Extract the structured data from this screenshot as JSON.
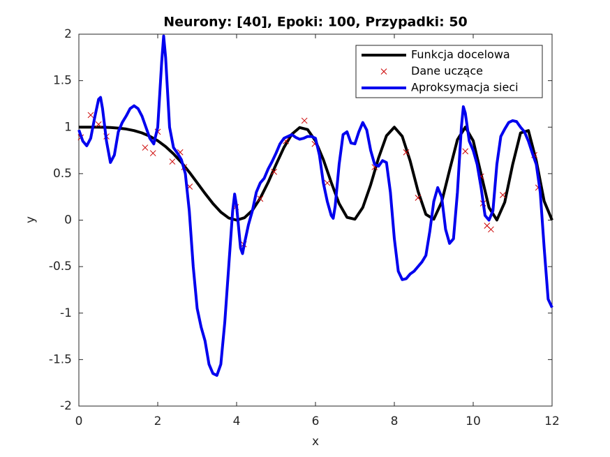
{
  "chart_data": {
    "type": "line",
    "title": "Neurony: [40], Epoki: 100, Przypadki: 50",
    "x_label": "x",
    "y_label": "y",
    "xlim": [
      0,
      12
    ],
    "ylim": [
      -2,
      2
    ],
    "xticks": [
      0,
      2,
      4,
      6,
      8,
      10,
      12
    ],
    "yticks": [
      -2,
      -1.5,
      -1,
      -0.5,
      0,
      0.5,
      1,
      1.5,
      2
    ],
    "legend": "northeast",
    "series": [
      {
        "name": "Funkcja docelowa",
        "color": "#000000",
        "x": [
          0,
          0.2,
          0.4,
          0.6,
          0.8,
          1,
          1.2,
          1.4,
          1.6,
          1.8,
          2,
          2.2,
          2.4,
          2.6,
          2.8,
          3,
          3.2,
          3.4,
          3.6,
          3.8,
          4,
          4.2,
          4.4,
          4.6,
          4.8,
          5,
          5.2,
          5.4,
          5.6,
          5.8,
          6,
          6.2,
          6.4,
          6.6,
          6.8,
          7,
          7.2,
          7.4,
          7.6,
          7.8,
          8,
          8.2,
          8.4,
          8.6,
          8.8,
          9,
          9.2,
          9.4,
          9.6,
          9.8,
          10,
          10.2,
          10.4,
          10.6,
          10.8,
          11,
          11.2,
          11.4,
          11.6,
          11.8,
          12
        ],
        "values": [
          1,
          1,
          1,
          0.999,
          0.996,
          0.99,
          0.98,
          0.963,
          0.938,
          0.902,
          0.854,
          0.791,
          0.713,
          0.621,
          0.516,
          0.402,
          0.287,
          0.178,
          0.086,
          0.023,
          0,
          0.026,
          0.105,
          0.236,
          0.406,
          0.598,
          0.781,
          0.924,
          0.996,
          0.974,
          0.853,
          0.651,
          0.406,
          0.178,
          0.03,
          0.01,
          0.136,
          0.38,
          0.669,
          0.907,
          1,
          0.902,
          0.639,
          0.312,
          0.062,
          0.01,
          0.194,
          0.536,
          0.865,
          1,
          0.854,
          0.496,
          0.136,
          0.001,
          0.193,
          0.597,
          0.938,
          0.963,
          0.639,
          0.203,
          0
        ]
      },
      {
        "name": "Dane uczące",
        "color": "#cc0000",
        "marker": "x",
        "x": [
          0.05,
          0.3,
          0.5,
          0.7,
          1.68,
          1.88,
          2.0,
          2.37,
          2.57,
          2.67,
          2.81,
          3.98,
          4.18,
          4.6,
          4.95,
          5.25,
          5.72,
          5.98,
          6.3,
          7.5,
          8.3,
          8.6,
          9.8,
          10.2,
          10.25,
          10.35,
          10.45,
          10.75,
          11.55,
          11.65
        ],
        "values": [
          0.89,
          1.13,
          1.03,
          0.9,
          0.78,
          0.72,
          0.95,
          0.63,
          0.73,
          0.57,
          0.36,
          0.14,
          -0.26,
          0.23,
          0.52,
          0.85,
          1.07,
          0.82,
          0.4,
          0.57,
          0.73,
          0.24,
          0.74,
          0.47,
          0.18,
          -0.06,
          -0.1,
          0.27,
          0.7,
          0.35
        ]
      },
      {
        "name": "Aproksymacja sieci",
        "color": "#0000ee",
        "x": [
          0,
          0.1,
          0.2,
          0.3,
          0.4,
          0.5,
          0.55,
          0.6,
          0.7,
          0.8,
          0.9,
          1,
          1.1,
          1.2,
          1.3,
          1.4,
          1.5,
          1.6,
          1.7,
          1.8,
          1.9,
          2,
          2.1,
          2.15,
          2.2,
          2.3,
          2.4,
          2.5,
          2.6,
          2.7,
          2.8,
          2.9,
          3,
          3.1,
          3.2,
          3.3,
          3.4,
          3.5,
          3.6,
          3.7,
          3.8,
          3.9,
          3.95,
          4,
          4.1,
          4.15,
          4.2,
          4.3,
          4.4,
          4.5,
          4.6,
          4.7,
          4.8,
          4.9,
          5,
          5.1,
          5.2,
          5.3,
          5.4,
          5.5,
          5.6,
          5.7,
          5.8,
          5.9,
          6,
          6.1,
          6.2,
          6.3,
          6.4,
          6.45,
          6.5,
          6.6,
          6.7,
          6.8,
          6.9,
          7,
          7.1,
          7.2,
          7.3,
          7.4,
          7.5,
          7.6,
          7.7,
          7.8,
          7.9,
          8,
          8.1,
          8.2,
          8.3,
          8.4,
          8.5,
          8.6,
          8.7,
          8.8,
          8.9,
          9,
          9.1,
          9.2,
          9.3,
          9.4,
          9.5,
          9.6,
          9.7,
          9.75,
          9.8,
          9.9,
          10,
          10.1,
          10.2,
          10.3,
          10.4,
          10.5,
          10.6,
          10.7,
          10.8,
          10.9,
          11,
          11.1,
          11.2,
          11.3,
          11.4,
          11.5,
          11.6,
          11.7,
          11.8,
          11.9,
          12
        ],
        "values": [
          0.97,
          0.85,
          0.8,
          0.88,
          1.1,
          1.3,
          1.32,
          1.2,
          0.85,
          0.62,
          0.7,
          0.95,
          1.05,
          1.12,
          1.2,
          1.23,
          1.2,
          1.12,
          1.0,
          0.88,
          0.82,
          1.0,
          1.7,
          1.98,
          1.75,
          1.0,
          0.78,
          0.72,
          0.65,
          0.5,
          0.1,
          -0.5,
          -0.95,
          -1.15,
          -1.3,
          -1.55,
          -1.65,
          -1.67,
          -1.55,
          -1.1,
          -0.5,
          0.1,
          0.28,
          0.15,
          -0.3,
          -0.36,
          -0.25,
          -0.05,
          0.1,
          0.3,
          0.4,
          0.45,
          0.55,
          0.63,
          0.72,
          0.82,
          0.88,
          0.9,
          0.92,
          0.89,
          0.87,
          0.88,
          0.9,
          0.9,
          0.88,
          0.7,
          0.4,
          0.2,
          0.05,
          0.02,
          0.15,
          0.6,
          0.92,
          0.95,
          0.83,
          0.82,
          0.95,
          1.05,
          0.97,
          0.75,
          0.6,
          0.58,
          0.64,
          0.62,
          0.3,
          -0.2,
          -0.55,
          -0.64,
          -0.63,
          -0.58,
          -0.55,
          -0.5,
          -0.45,
          -0.38,
          -0.12,
          0.2,
          0.35,
          0.25,
          -0.1,
          -0.25,
          -0.2,
          0.3,
          1.0,
          1.22,
          1.15,
          0.85,
          0.75,
          0.6,
          0.35,
          0.05,
          0.0,
          0.1,
          0.6,
          0.9,
          0.98,
          1.05,
          1.07,
          1.06,
          1.0,
          0.95,
          0.85,
          0.72,
          0.6,
          0.3,
          -0.3,
          -0.85,
          -0.94
        ]
      }
    ]
  }
}
